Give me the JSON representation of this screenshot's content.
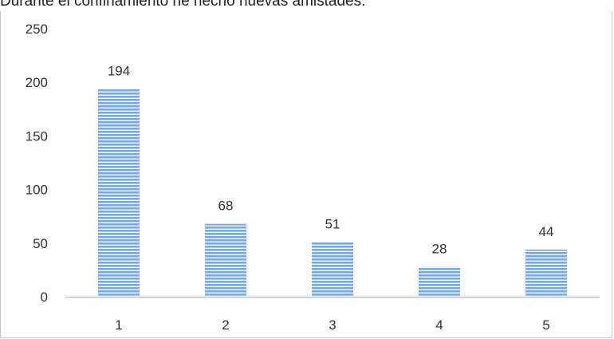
{
  "chart_data": {
    "type": "bar",
    "title": "Durante el confinamiento he hecho nuevas amistades.",
    "categories": [
      "1",
      "2",
      "3",
      "4",
      "5"
    ],
    "values": [
      194,
      68,
      51,
      28,
      44
    ],
    "data_labels": [
      "194",
      "68",
      "51",
      "28",
      "44"
    ],
    "yticks": [
      "0",
      "50",
      "100",
      "150",
      "200",
      "250"
    ],
    "ylim": [
      0,
      250
    ],
    "xlabel": "",
    "ylabel": "",
    "grid": false,
    "legend": "none",
    "colors": {
      "bar": "#7aa7dc",
      "bar_stripe": "#ffffff",
      "axis": "#bfbfbf",
      "text": "#333333"
    }
  }
}
